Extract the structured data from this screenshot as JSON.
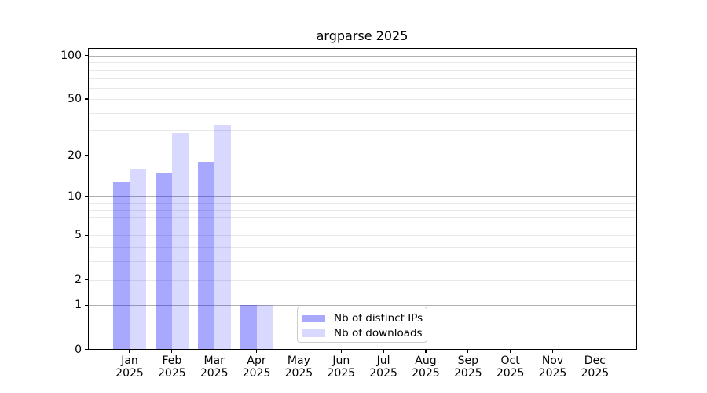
{
  "title": "argparse 2025",
  "legend": [
    {
      "label": "Nb of distinct IPs",
      "color": "rgba(0,0,255,0.34)"
    },
    {
      "label": "Nb of downloads",
      "color": "rgba(0,0,255,0.15)"
    }
  ],
  "colors": {
    "bar_distinct_ips": "rgba(0,0,255,0.34)",
    "bar_downloads": "rgba(0,0,255,0.15)",
    "grid_major": "#b0b0b0",
    "grid_minor": "#e8e8e8",
    "spine": "#000000",
    "legend_border": "#cccccc",
    "text": "#000000"
  },
  "chart_data": {
    "type": "bar",
    "title": "argparse 2025",
    "categories": [
      "Jan 2025",
      "Feb 2025",
      "Mar 2025",
      "Apr 2025",
      "May 2025",
      "Jun 2025",
      "Jul 2025",
      "Aug 2025",
      "Sep 2025",
      "Oct 2025",
      "Nov 2025",
      "Dec 2025"
    ],
    "series": [
      {
        "name": "Nb of distinct IPs",
        "color": "rgba(0,0,255,0.34)",
        "values": [
          13,
          15,
          18,
          1,
          0,
          0,
          0,
          0,
          0,
          0,
          0,
          0
        ]
      },
      {
        "name": "Nb of downloads",
        "color": "rgba(0,0,255,0.15)",
        "values": [
          16,
          29,
          33,
          1,
          0,
          0,
          0,
          0,
          0,
          0,
          0,
          0
        ]
      }
    ],
    "xlabel": "",
    "ylabel": "",
    "yscale": "log1p",
    "ylim": [
      0,
      116
    ],
    "y_ticks": [
      0,
      1,
      2,
      5,
      10,
      20,
      50,
      100
    ],
    "y_major_gridlines": [
      1,
      10,
      100
    ],
    "y_minor_gridlines": [
      2,
      3,
      4,
      5,
      6,
      7,
      8,
      9,
      20,
      30,
      40,
      50,
      60,
      70,
      80,
      90,
      110
    ],
    "grid": true,
    "legend_position": "lower-center inside plot"
  }
}
